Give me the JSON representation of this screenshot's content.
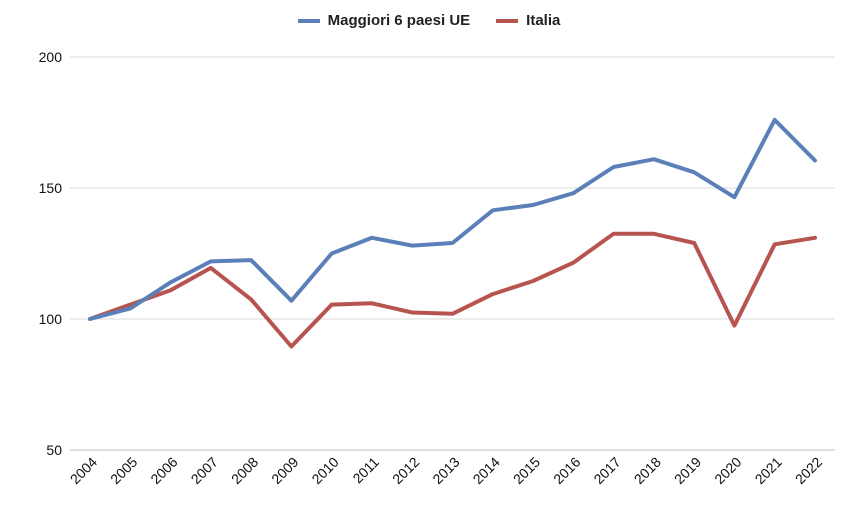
{
  "chart_data": {
    "type": "line",
    "x": [
      "2004",
      "2005",
      "2006",
      "2007",
      "2008",
      "2009",
      "2010",
      "2011",
      "2012",
      "2013",
      "2014",
      "2015",
      "2016",
      "2017",
      "2018",
      "2019",
      "2020",
      "2021",
      "2022"
    ],
    "series": [
      {
        "name": "Maggiori 6 paesi UE",
        "color": "#5b80b9",
        "values": [
          100,
          104,
          114,
          122,
          122.5,
          107,
          125,
          131,
          128,
          129,
          141.5,
          143.5,
          148,
          158,
          161,
          156,
          146.5,
          176,
          160.5
        ]
      },
      {
        "name": "Italia",
        "color": "#b85450",
        "values": [
          100,
          105.5,
          111,
          119.5,
          107.5,
          89.5,
          105.5,
          106,
          102.5,
          102,
          109.5,
          114.5,
          121.5,
          132.5,
          132.5,
          129,
          97.5,
          128.5,
          131
        ]
      }
    ],
    "yticks": [
      "50",
      "100",
      "150",
      "200"
    ],
    "ylim": [
      50,
      200
    ],
    "grid": true,
    "legend_position": "top-center"
  }
}
